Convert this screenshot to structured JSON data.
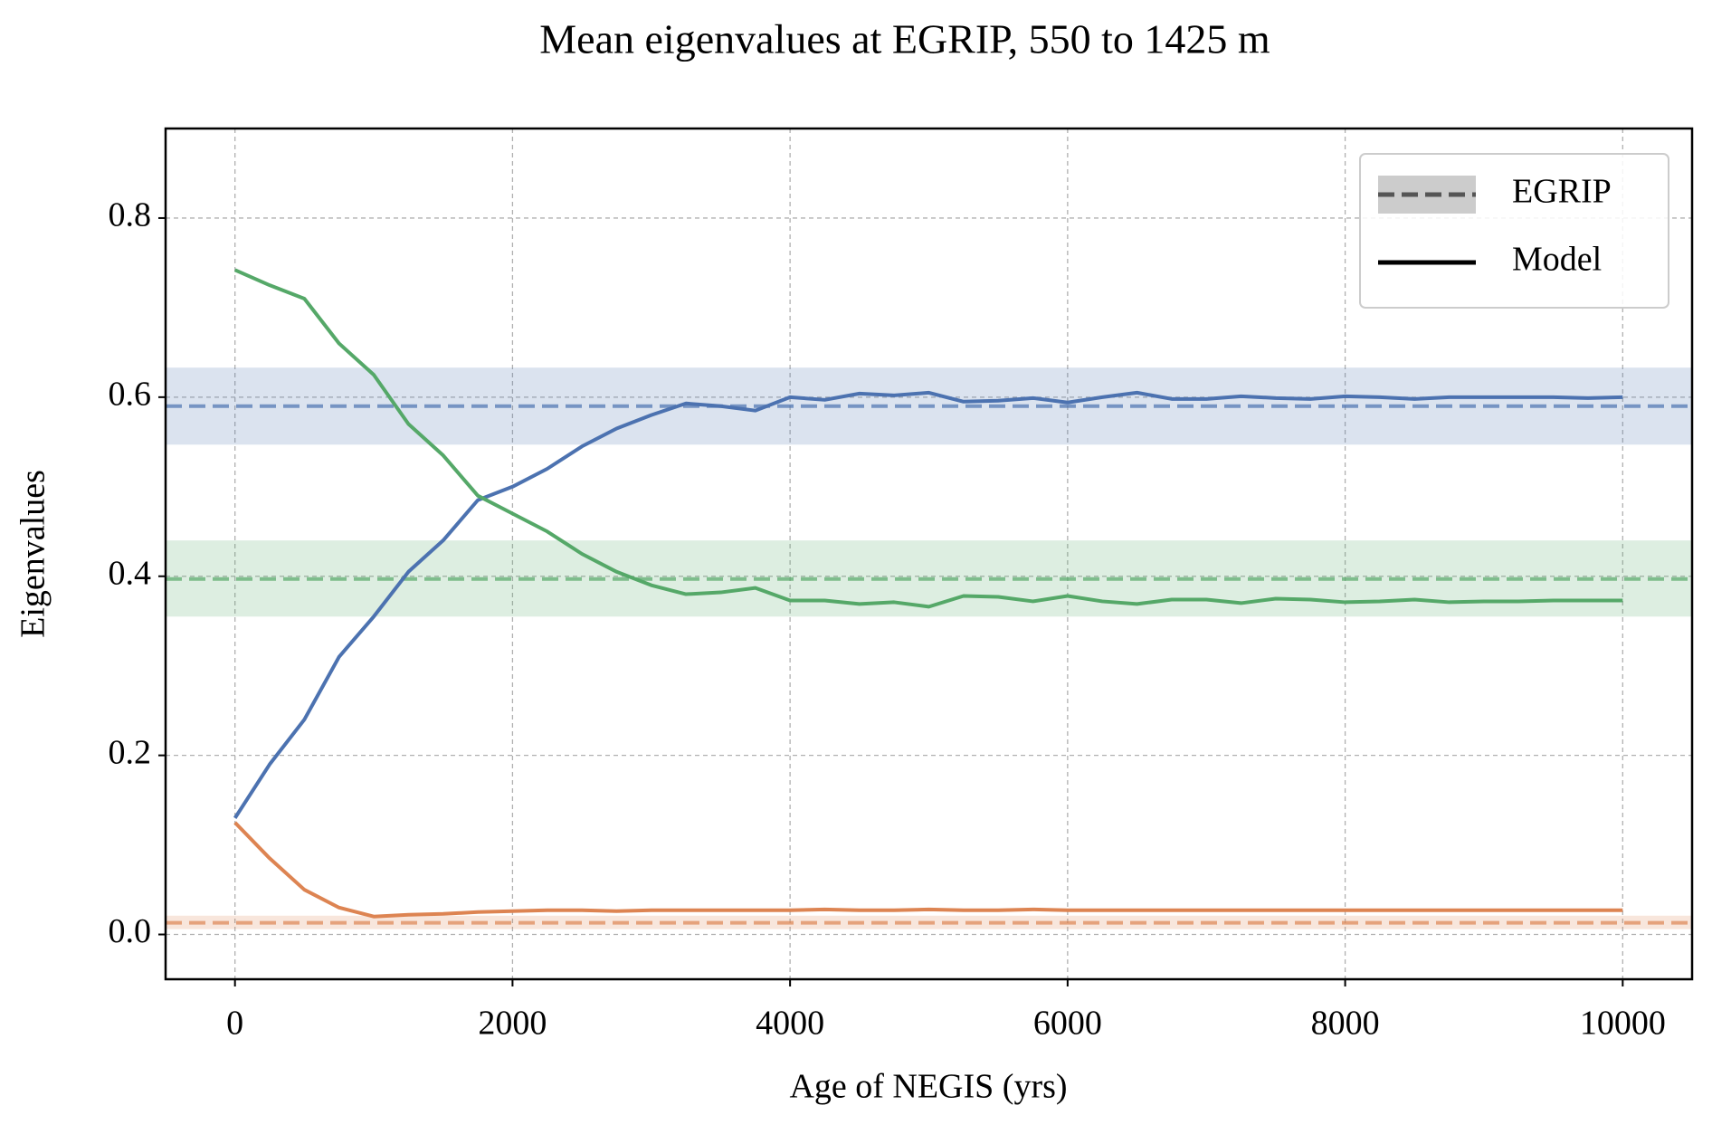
{
  "chart_data": {
    "type": "line",
    "title": "Mean eigenvalues at EGRIP, 550 to 1425 m",
    "xlabel": "Age of NEGIS (yrs)",
    "ylabel": "Eigenvalues",
    "xlim": [
      -500,
      10500
    ],
    "ylim": [
      -0.05,
      0.9
    ],
    "xticks": [
      0,
      2000,
      4000,
      6000,
      8000,
      10000
    ],
    "yticks": [
      {
        "value": 0,
        "label": "0.0"
      },
      0.2,
      0.4,
      0.6,
      0.8
    ],
    "grid": true,
    "legend_position": "upper right",
    "legend_entries": [
      "EGRIP",
      "Model"
    ],
    "x": [
      0,
      250,
      500,
      750,
      1000,
      1250,
      1500,
      1750,
      2000,
      2250,
      2500,
      2750,
      3000,
      3250,
      3500,
      3750,
      4000,
      4250,
      4500,
      4750,
      5000,
      5250,
      5500,
      5750,
      6000,
      6250,
      6500,
      6750,
      7000,
      7250,
      7500,
      7750,
      8000,
      8250,
      8500,
      8750,
      9000,
      9250,
      9500,
      9750,
      10000
    ],
    "series": [
      {
        "color": "#4c72b0",
        "values": [
          0.13,
          0.19,
          0.24,
          0.31,
          0.355,
          0.405,
          0.44,
          0.485,
          0.5,
          0.52,
          0.545,
          0.565,
          0.58,
          0.593,
          0.59,
          0.585,
          0.6,
          0.597,
          0.604,
          0.602,
          0.605,
          0.595,
          0.596,
          0.599,
          0.594,
          0.6,
          0.605,
          0.598,
          0.598,
          0.601,
          0.599,
          0.598,
          0.601,
          0.6,
          0.598,
          0.6,
          0.6,
          0.6,
          0.6,
          0.599,
          0.6
        ]
      },
      {
        "color": "#55a868",
        "values": [
          0.742,
          0.725,
          0.71,
          0.66,
          0.625,
          0.57,
          0.535,
          0.49,
          0.47,
          0.45,
          0.425,
          0.405,
          0.39,
          0.38,
          0.382,
          0.387,
          0.373,
          0.373,
          0.369,
          0.371,
          0.366,
          0.378,
          0.377,
          0.372,
          0.378,
          0.372,
          0.369,
          0.374,
          0.374,
          0.37,
          0.375,
          0.374,
          0.371,
          0.372,
          0.374,
          0.371,
          0.372,
          0.372,
          0.373,
          0.373,
          0.373
        ]
      },
      {
        "color": "#dd8452",
        "values": [
          0.125,
          0.085,
          0.05,
          0.03,
          0.02,
          0.022,
          0.023,
          0.025,
          0.026,
          0.027,
          0.027,
          0.026,
          0.027,
          0.027,
          0.027,
          0.027,
          0.027,
          0.028,
          0.027,
          0.027,
          0.028,
          0.027,
          0.027,
          0.028,
          0.027,
          0.027,
          0.027,
          0.027,
          0.027,
          0.027,
          0.027,
          0.027,
          0.027,
          0.027,
          0.027,
          0.027,
          0.027,
          0.027,
          0.027,
          0.027,
          0.027
        ]
      }
    ],
    "references": [
      {
        "color": "#4c72b0",
        "value": 0.59,
        "lower": 0.547,
        "upper": 0.633
      },
      {
        "color": "#55a868",
        "value": 0.397,
        "lower": 0.355,
        "upper": 0.44
      },
      {
        "color": "#dd8452",
        "value": 0.013,
        "lower": 0.006,
        "upper": 0.021
      }
    ]
  }
}
